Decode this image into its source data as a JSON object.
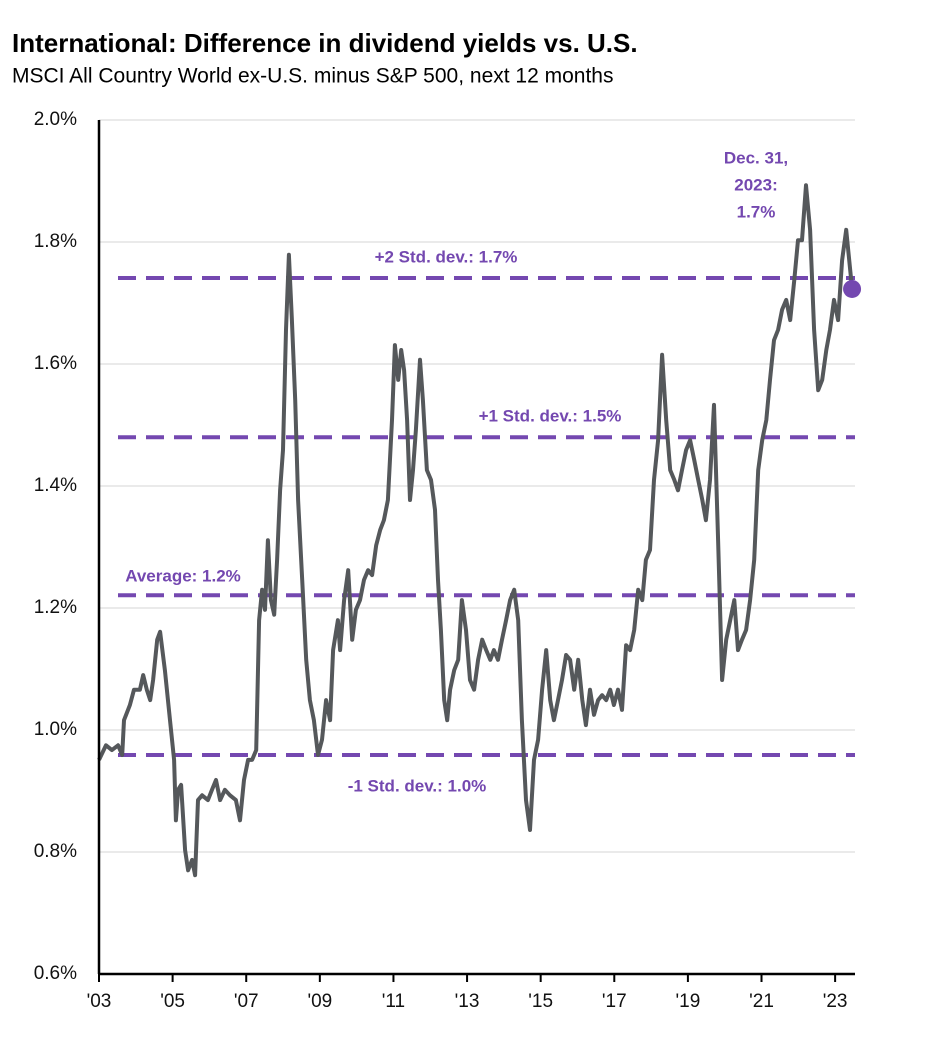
{
  "chart_data": {
    "type": "line",
    "title": "International: Difference in dividend yields vs. U.S.",
    "subtitle": "MSCI All Country World ex-U.S. minus S&P 500, next 12 months",
    "xlim": [
      2003,
      2023.54
    ],
    "xticks": [
      {
        "value": 2003,
        "label": "'03"
      },
      {
        "value": 2005,
        "label": "'05"
      },
      {
        "value": 2007,
        "label": "'07"
      },
      {
        "value": 2009,
        "label": "'09"
      },
      {
        "value": 2011,
        "label": "'11"
      },
      {
        "value": 2013,
        "label": "'13"
      },
      {
        "value": 2015,
        "label": "'15"
      },
      {
        "value": 2017,
        "label": "'17"
      },
      {
        "value": 2019,
        "label": "'19"
      },
      {
        "value": 2021,
        "label": "'21"
      },
      {
        "value": 2023,
        "label": "'23"
      }
    ],
    "ylim": [
      0.6,
      2.0
    ],
    "yticks": [
      {
        "value": 0.6,
        "label": "0.6%"
      },
      {
        "value": 0.8,
        "label": "0.8%"
      },
      {
        "value": 1.0,
        "label": "1.0%"
      },
      {
        "value": 1.2,
        "label": "1.2%"
      },
      {
        "value": 1.4,
        "label": "1.4%"
      },
      {
        "value": 1.6,
        "label": "1.6%"
      },
      {
        "value": 1.8,
        "label": "1.8%"
      },
      {
        "value": 2.0,
        "label": "2.0%"
      }
    ],
    "grid": true,
    "reference_color": "#7448b0",
    "reference_lines": [
      {
        "label": "+2 Std. dev.: 1.7%",
        "value": 1.741
      },
      {
        "label": "+1 Std. dev.: 1.5%",
        "value": 1.48
      },
      {
        "label": "Average: 1.2%",
        "value": 1.221
      },
      {
        "label": "-1 Std. dev.: 1.0%",
        "value": 0.959
      }
    ],
    "annotation": [
      "Dec. 31,",
      "2023:",
      "1.7%"
    ],
    "series": [
      {
        "name": "Difference in dividend yields",
        "color": "#55585b",
        "x": [
          2003.0,
          2003.19,
          2003.35,
          2003.52,
          2003.63,
          2003.68,
          2003.84,
          2003.95,
          2004.11,
          2004.2,
          2004.3,
          2004.39,
          2004.47,
          2004.58,
          2004.66,
          2004.79,
          2004.93,
          2005.04,
          2005.09,
          2005.15,
          2005.23,
          2005.34,
          2005.42,
          2005.53,
          2005.61,
          2005.69,
          2005.8,
          2005.96,
          2006.07,
          2006.18,
          2006.29,
          2006.42,
          2006.56,
          2006.72,
          2006.83,
          2006.94,
          2007.05,
          2007.16,
          2007.27,
          2007.35,
          2007.43,
          2007.51,
          2007.59,
          2007.67,
          2007.76,
          2007.84,
          2007.92,
          2008.0,
          2008.08,
          2008.16,
          2008.24,
          2008.33,
          2008.41,
          2008.52,
          2008.63,
          2008.73,
          2008.84,
          2008.95,
          2009.06,
          2009.17,
          2009.28,
          2009.36,
          2009.49,
          2009.55,
          2009.66,
          2009.77,
          2009.88,
          2009.98,
          2010.09,
          2010.2,
          2010.31,
          2010.42,
          2010.53,
          2010.64,
          2010.74,
          2010.85,
          2010.96,
          2011.04,
          2011.13,
          2011.21,
          2011.29,
          2011.37,
          2011.45,
          2011.53,
          2011.61,
          2011.72,
          2011.8,
          2011.91,
          2012.02,
          2012.13,
          2012.21,
          2012.29,
          2012.38,
          2012.46,
          2012.54,
          2012.65,
          2012.76,
          2012.86,
          2012.97,
          2013.08,
          2013.19,
          2013.3,
          2013.41,
          2013.52,
          2013.63,
          2013.73,
          2013.84,
          2013.95,
          2014.06,
          2014.17,
          2014.28,
          2014.39,
          2014.49,
          2014.6,
          2014.71,
          2014.82,
          2014.93,
          2015.04,
          2015.15,
          2015.26,
          2015.36,
          2015.47,
          2015.58,
          2015.69,
          2015.8,
          2015.91,
          2016.02,
          2016.13,
          2016.23,
          2016.34,
          2016.45,
          2016.56,
          2016.67,
          2016.78,
          2016.89,
          2016.99,
          2017.1,
          2017.21,
          2017.32,
          2017.43,
          2017.54,
          2017.65,
          2017.76,
          2017.86,
          2017.97,
          2018.08,
          2018.19,
          2018.3,
          2018.41,
          2018.52,
          2018.63,
          2018.73,
          2018.84,
          2018.95,
          2019.06,
          2019.17,
          2019.28,
          2019.39,
          2019.49,
          2019.6,
          2019.71,
          2019.82,
          2019.93,
          2020.04,
          2020.15,
          2020.26,
          2020.36,
          2020.47,
          2020.58,
          2020.69,
          2020.8,
          2020.91,
          2021.02,
          2021.13,
          2021.23,
          2021.34,
          2021.45,
          2021.56,
          2021.67,
          2021.78,
          2021.89,
          2021.99,
          2022.1,
          2022.21,
          2022.32,
          2022.43,
          2022.54,
          2022.65,
          2022.76,
          2022.86,
          2022.97,
          2023.08,
          2023.19,
          2023.3,
          2023.41,
          2023.46
        ],
        "values": [
          0.951,
          0.975,
          0.967,
          0.975,
          0.959,
          1.016,
          1.041,
          1.066,
          1.066,
          1.09,
          1.066,
          1.049,
          1.082,
          1.148,
          1.161,
          1.098,
          1.016,
          0.951,
          0.852,
          0.902,
          0.91,
          0.803,
          0.77,
          0.787,
          0.762,
          0.885,
          0.893,
          0.885,
          0.902,
          0.918,
          0.885,
          0.902,
          0.893,
          0.885,
          0.852,
          0.918,
          0.951,
          0.951,
          0.967,
          1.18,
          1.23,
          1.197,
          1.311,
          1.213,
          1.189,
          1.279,
          1.393,
          1.459,
          1.656,
          1.779,
          1.672,
          1.541,
          1.377,
          1.246,
          1.115,
          1.049,
          1.016,
          0.959,
          0.984,
          1.049,
          1.016,
          1.131,
          1.18,
          1.131,
          1.213,
          1.262,
          1.148,
          1.197,
          1.213,
          1.246,
          1.262,
          1.254,
          1.303,
          1.328,
          1.344,
          1.377,
          1.508,
          1.631,
          1.574,
          1.623,
          1.59,
          1.508,
          1.377,
          1.426,
          1.492,
          1.607,
          1.541,
          1.426,
          1.41,
          1.361,
          1.246,
          1.164,
          1.049,
          1.016,
          1.066,
          1.098,
          1.115,
          1.213,
          1.164,
          1.082,
          1.066,
          1.115,
          1.148,
          1.131,
          1.115,
          1.131,
          1.115,
          1.148,
          1.18,
          1.213,
          1.23,
          1.18,
          1.016,
          0.885,
          0.836,
          0.951,
          0.984,
          1.066,
          1.131,
          1.049,
          1.016,
          1.049,
          1.082,
          1.123,
          1.115,
          1.066,
          1.115,
          1.049,
          1.008,
          1.066,
          1.025,
          1.049,
          1.057,
          1.049,
          1.066,
          1.041,
          1.066,
          1.033,
          1.139,
          1.131,
          1.164,
          1.23,
          1.213,
          1.279,
          1.295,
          1.41,
          1.475,
          1.615,
          1.508,
          1.426,
          1.41,
          1.393,
          1.426,
          1.459,
          1.475,
          1.443,
          1.41,
          1.377,
          1.344,
          1.41,
          1.533,
          1.311,
          1.082,
          1.148,
          1.18,
          1.213,
          1.131,
          1.148,
          1.164,
          1.213,
          1.279,
          1.426,
          1.475,
          1.508,
          1.574,
          1.639,
          1.656,
          1.689,
          1.705,
          1.672,
          1.738,
          1.803,
          1.803,
          1.893,
          1.82,
          1.656,
          1.557,
          1.574,
          1.623,
          1.656,
          1.705,
          1.672,
          1.77,
          1.82,
          1.754,
          1.723
        ]
      }
    ]
  }
}
